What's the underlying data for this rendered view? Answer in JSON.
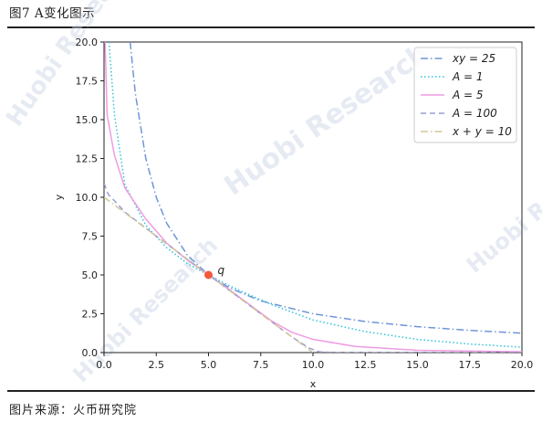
{
  "header": {
    "title": "图7 A变化图示"
  },
  "footer": {
    "source": "图片来源：火币研究院"
  },
  "watermark": {
    "text": "Huobi Research",
    "color": "#c9d3e6"
  },
  "chart_data": {
    "type": "line",
    "xlabel": "x",
    "ylabel": "y",
    "xlim": [
      0,
      20
    ],
    "ylim": [
      0,
      20
    ],
    "xticks": [
      0,
      2.5,
      5,
      7.5,
      10,
      12.5,
      15,
      17.5,
      20
    ],
    "xtick_labels": [
      "0.0",
      "2.5",
      "5.0",
      "7.5",
      "10.0",
      "12.5",
      "15.0",
      "17.5",
      "20.0"
    ],
    "yticks": [
      0,
      2.5,
      5,
      7.5,
      10,
      12.5,
      15,
      17.5,
      20
    ],
    "ytick_labels": [
      "0.0",
      "2.5",
      "5.0",
      "7.5",
      "10.0",
      "12.5",
      "15.0",
      "17.5",
      "20.0"
    ],
    "grid": false,
    "legend_position": "top-right",
    "series": [
      {
        "name": "xy = 25",
        "color": "#6f95d8",
        "dash": "dashdot",
        "points": [
          [
            1.25,
            20
          ],
          [
            1.5,
            16.67
          ],
          [
            2,
            12.5
          ],
          [
            2.5,
            10
          ],
          [
            3,
            8.33
          ],
          [
            4,
            6.25
          ],
          [
            5,
            5
          ],
          [
            6,
            4.17
          ],
          [
            7.5,
            3.33
          ],
          [
            10,
            2.5
          ],
          [
            12.5,
            2
          ],
          [
            15,
            1.67
          ],
          [
            17.5,
            1.43
          ],
          [
            20,
            1.25
          ]
        ]
      },
      {
        "name": "A = 1",
        "color": "#2ec3d9",
        "dash": "dotted",
        "points": [
          [
            0.24,
            20
          ],
          [
            0.5,
            15.3
          ],
          [
            1,
            10.8
          ],
          [
            2,
            8.2
          ],
          [
            3,
            6.75
          ],
          [
            4,
            5.72
          ],
          [
            5,
            5
          ],
          [
            6,
            4.3
          ],
          [
            7,
            3.7
          ],
          [
            8,
            3.1
          ],
          [
            10,
            2.1
          ],
          [
            12.5,
            1.35
          ],
          [
            15,
            0.85
          ],
          [
            17.5,
            0.55
          ],
          [
            20,
            0.35
          ]
        ]
      },
      {
        "name": "A = 5",
        "color": "#f09be3",
        "dash": "solid",
        "points": [
          [
            0.05,
            20
          ],
          [
            0.15,
            15.3
          ],
          [
            0.5,
            12.7
          ],
          [
            1,
            10.6
          ],
          [
            2,
            8.6
          ],
          [
            3,
            7.05
          ],
          [
            4,
            5.95
          ],
          [
            5,
            5
          ],
          [
            6,
            4.05
          ],
          [
            7,
            3.05
          ],
          [
            8,
            2.05
          ],
          [
            9,
            1.3
          ],
          [
            10,
            0.85
          ],
          [
            12,
            0.4
          ],
          [
            15,
            0.15
          ],
          [
            20,
            0.05
          ]
        ]
      },
      {
        "name": "A = 100",
        "color": "#9a9ed3",
        "dash": "dashed",
        "points": [
          [
            0,
            10.9
          ],
          [
            0.2,
            10.2
          ],
          [
            1,
            9.05
          ],
          [
            2.5,
            7.5
          ],
          [
            5,
            5
          ],
          [
            7.5,
            2.5
          ],
          [
            9,
            1
          ],
          [
            9.8,
            0.3
          ],
          [
            10.3,
            0.05
          ],
          [
            11,
            0
          ],
          [
            20,
            0
          ]
        ]
      },
      {
        "name": "x + y = 10",
        "color": "#d2c79b",
        "dash": "dashdot",
        "points": [
          [
            0,
            10
          ],
          [
            10,
            0
          ]
        ]
      }
    ],
    "markers": [
      {
        "label": "q",
        "x": 5,
        "y": 5,
        "color": "#f25a3c"
      }
    ]
  }
}
